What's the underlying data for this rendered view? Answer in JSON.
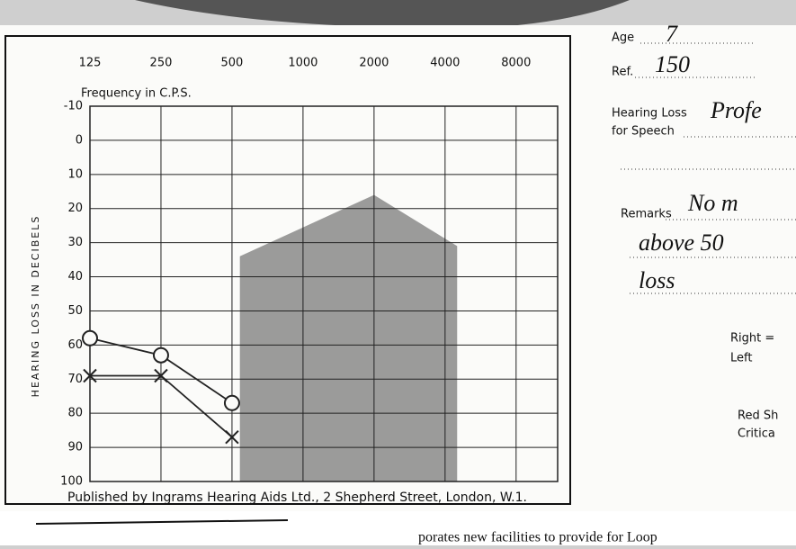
{
  "chart_data": {
    "type": "line",
    "x_title": "Frequency in C.P.S.",
    "y_title": "HEARING LOSS IN DECIBELS",
    "xscale": "log",
    "xlim": [
      125,
      12000
    ],
    "xticks": [
      125,
      250,
      500,
      1000,
      2000,
      4000,
      8000
    ],
    "ylim": [
      -10,
      100
    ],
    "yinverted": true,
    "yticks": [
      -10,
      0,
      10,
      20,
      30,
      40,
      50,
      60,
      70,
      80,
      90,
      100
    ],
    "grid": true,
    "series": [
      {
        "name": "Right =",
        "marker": "o",
        "color": "#222222",
        "x": [
          125,
          250,
          500
        ],
        "values": [
          58,
          63,
          77
        ]
      },
      {
        "name": "Left",
        "marker": "x",
        "color": "#222222",
        "x": [
          125,
          250,
          500
        ],
        "values": [
          69,
          69,
          87
        ]
      }
    ],
    "area": {
      "color": "#8a8a8a",
      "x": [
        540,
        540,
        2000,
        4500,
        4500
      ],
      "values": [
        100,
        34,
        16,
        31,
        100
      ]
    }
  },
  "form": {
    "age_label": "Age",
    "age": "7",
    "ref_label": "Ref.",
    "ref": "150",
    "speech_label_1": "Hearing Loss",
    "speech_label_2": "for Speech",
    "speech": "Profe",
    "remarks_label": "Remarks",
    "remarks_1": "No m",
    "remarks_2": "above 50",
    "remarks_3": "loss",
    "red_1": "Red Sh",
    "red_2": "Critica"
  },
  "footer": "Published by Ingrams Hearing Aids Ltd., 2 Shepherd Street, London, W.1.",
  "page_text": "porates new facilities to provide for Loop"
}
